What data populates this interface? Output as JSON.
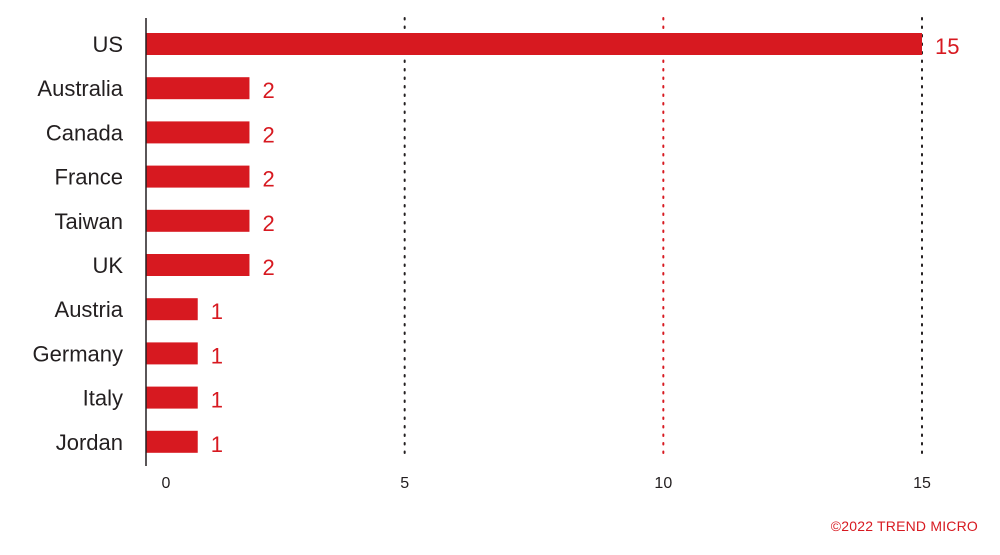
{
  "chart_data": {
    "type": "bar",
    "orientation": "horizontal",
    "categories": [
      "US",
      "Australia",
      "Canada",
      "France",
      "Taiwan",
      "UK",
      "Austria",
      "Germany",
      "Italy",
      "Jordan"
    ],
    "values": [
      15,
      2,
      2,
      2,
      2,
      2,
      1,
      1,
      1,
      1
    ],
    "xticks": [
      0,
      5,
      10,
      15
    ],
    "xlim": [
      0,
      15
    ],
    "grid": "vertical dotted",
    "title": "",
    "xlabel": "",
    "ylabel": ""
  },
  "colors": {
    "bar": "#d71920",
    "value_label": "#d71920",
    "grid_dark": "#231f20",
    "grid_red": "#d71920",
    "text": "#231f20",
    "copyright": "#d71920"
  },
  "footer": {
    "copyright": "©2022 TREND MICRO"
  }
}
